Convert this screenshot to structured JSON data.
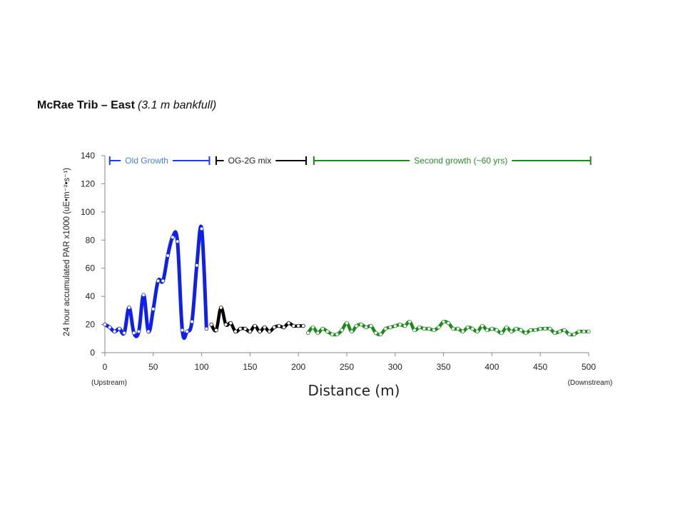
{
  "title": {
    "main": "McRae Trib – East",
    "sub": "(3.1 m bankfull)"
  },
  "chart_data": {
    "type": "line",
    "xlabel": "Distance (m)",
    "ylabel": "24 hour accumulated PAR x1000 (uE•m⁻²•s⁻¹)",
    "xlim": [
      0,
      500
    ],
    "ylim": [
      0,
      140
    ],
    "xticks": [
      "0",
      "50",
      "100",
      "150",
      "200",
      "250",
      "300",
      "350",
      "400",
      "450",
      "500"
    ],
    "yticks": [
      "0",
      "20",
      "40",
      "60",
      "80",
      "100",
      "120",
      "140"
    ],
    "grid": false,
    "x_end_labels": {
      "left": "(Upstream)",
      "right": "(Downstream)"
    },
    "segments": [
      {
        "label": "Old Growth",
        "color": "#1f3fe0",
        "label_color": "#4a7fd9",
        "range": [
          5,
          108
        ]
      },
      {
        "label": "OG-2G mix",
        "color": "#000000",
        "label_color": "#222222",
        "range": [
          115,
          208
        ]
      },
      {
        "label": "Second growth (~60 yrs)",
        "color": "#1a8a1a",
        "label_color": "#2a8a2a",
        "range": [
          216,
          502
        ]
      }
    ],
    "series": [
      {
        "color": "#1020e8",
        "width": 5,
        "x": [
          0,
          5,
          10,
          15,
          20,
          25,
          30,
          35,
          40,
          45,
          50,
          55,
          60,
          65,
          70,
          75,
          80,
          85,
          90,
          95,
          100,
          105
        ],
        "y": [
          20,
          18,
          15,
          17,
          14,
          32,
          14,
          15,
          41,
          15,
          31,
          51,
          51,
          69,
          82,
          79,
          16,
          15,
          22,
          62,
          88,
          17
        ]
      },
      {
        "color": "#000000",
        "width": 4.5,
        "x": [
          110,
          115,
          120,
          125,
          130,
          135,
          140,
          145,
          150,
          155,
          160,
          165,
          170,
          175,
          180,
          185,
          190,
          195,
          200,
          205
        ],
        "y": [
          20,
          16,
          32,
          20,
          21,
          15,
          17,
          17,
          15,
          19,
          15,
          18,
          15,
          18,
          19,
          18,
          21,
          19,
          19,
          19
        ]
      },
      {
        "color": "#1a8a1a",
        "width": 4.5,
        "x": [
          210,
          215,
          220,
          225,
          230,
          235,
          240,
          245,
          250,
          255,
          260,
          265,
          270,
          275,
          280,
          285,
          290,
          295,
          300,
          305,
          310,
          315,
          320,
          325,
          330,
          335,
          340,
          345,
          350,
          355,
          360,
          365,
          370,
          375,
          380,
          385,
          390,
          395,
          400,
          405,
          410,
          415,
          420,
          425,
          430,
          435,
          440,
          445,
          450,
          455,
          460,
          465,
          470,
          475,
          480,
          485,
          490,
          495,
          500
        ],
        "y": [
          14,
          18,
          14,
          17,
          15,
          13,
          13,
          16,
          21,
          15,
          19,
          20,
          18,
          19,
          14,
          13,
          17,
          18,
          19,
          20,
          19,
          22,
          16,
          18,
          17,
          17,
          16,
          18,
          22,
          21,
          17,
          17,
          15,
          18,
          17,
          15,
          19,
          16,
          17,
          16,
          14,
          18,
          15,
          17,
          16,
          14,
          16,
          16,
          17,
          17,
          17,
          14,
          15,
          16,
          13,
          13,
          15,
          15,
          15
        ]
      }
    ]
  }
}
